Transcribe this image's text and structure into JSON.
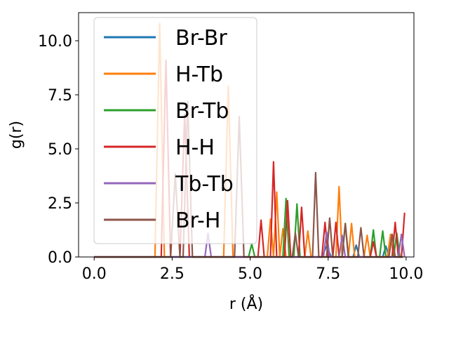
{
  "chart_data": {
    "type": "line",
    "xlabel": "r (Å)",
    "ylabel": "g(r)",
    "xlim": [
      -0.5,
      10.25
    ],
    "ylim": [
      0.0,
      11.3
    ],
    "xticks": [
      0.0,
      2.5,
      5.0,
      7.5,
      10.0
    ],
    "xtick_labels": [
      "0.0",
      "2.5",
      "5.0",
      "7.5",
      "10.0"
    ],
    "yticks": [
      0.0,
      2.5,
      5.0,
      7.5,
      10.0
    ],
    "ytick_labels": [
      "0.0",
      "2.5",
      "5.0",
      "7.5",
      "10.0"
    ],
    "grid": false,
    "legend_position": "upper left",
    "series": [
      {
        "name": "Br-Br",
        "color": "#1f77b4",
        "points": [
          [
            0.0,
            0
          ],
          [
            7.3,
            0
          ],
          [
            7.45,
            0.5
          ],
          [
            7.6,
            0
          ],
          [
            8.3,
            0
          ],
          [
            8.4,
            0.55
          ],
          [
            8.5,
            0
          ],
          [
            9.25,
            0
          ],
          [
            9.35,
            0.5
          ],
          [
            9.45,
            0
          ],
          [
            9.9,
            0
          ]
        ]
      },
      {
        "name": "H-Tb",
        "color": "#ff7f0e",
        "points": [
          [
            0.0,
            0
          ],
          [
            1.95,
            0
          ],
          [
            2.1,
            10.8
          ],
          [
            2.25,
            0
          ],
          [
            4.15,
            0
          ],
          [
            4.3,
            7.9
          ],
          [
            4.45,
            0
          ],
          [
            5.55,
            0
          ],
          [
            5.65,
            1.75
          ],
          [
            5.75,
            0
          ],
          [
            5.85,
            3.0
          ],
          [
            5.95,
            0
          ],
          [
            6.05,
            1.3
          ],
          [
            6.15,
            0
          ],
          [
            6.75,
            0
          ],
          [
            6.85,
            1.2
          ],
          [
            6.95,
            0
          ],
          [
            7.75,
            0
          ],
          [
            7.85,
            3.25
          ],
          [
            7.95,
            0
          ],
          [
            8.15,
            0
          ],
          [
            8.25,
            1.55
          ],
          [
            8.35,
            0
          ],
          [
            8.65,
            0
          ],
          [
            8.75,
            1.0
          ],
          [
            8.85,
            0
          ],
          [
            9.4,
            0
          ],
          [
            9.5,
            1.05
          ],
          [
            9.6,
            0
          ],
          [
            9.9,
            0
          ]
        ]
      },
      {
        "name": "Br-Tb",
        "color": "#2ca02c",
        "points": [
          [
            0.0,
            0
          ],
          [
            4.95,
            0
          ],
          [
            5.05,
            0.6
          ],
          [
            5.15,
            0
          ],
          [
            6.05,
            0
          ],
          [
            6.15,
            2.7
          ],
          [
            6.25,
            0
          ],
          [
            6.4,
            0
          ],
          [
            6.5,
            2.45
          ],
          [
            6.6,
            0
          ],
          [
            7.95,
            0
          ],
          [
            8.05,
            1.55
          ],
          [
            8.15,
            0
          ],
          [
            8.85,
            0
          ],
          [
            8.95,
            1.25
          ],
          [
            9.05,
            0
          ],
          [
            9.15,
            0
          ],
          [
            9.25,
            1.2
          ],
          [
            9.35,
            0
          ],
          [
            9.6,
            0
          ],
          [
            9.7,
            1.1
          ],
          [
            9.8,
            0
          ],
          [
            9.9,
            0
          ]
        ]
      },
      {
        "name": "H-H",
        "color": "#d62728",
        "points": [
          [
            0.0,
            0
          ],
          [
            2.15,
            0
          ],
          [
            2.3,
            9.1
          ],
          [
            2.45,
            0
          ],
          [
            2.75,
            0
          ],
          [
            2.9,
            6.6
          ],
          [
            3.05,
            0
          ],
          [
            5.25,
            0
          ],
          [
            5.35,
            1.7
          ],
          [
            5.45,
            0
          ],
          [
            5.65,
            0
          ],
          [
            5.75,
            4.4
          ],
          [
            5.85,
            0
          ],
          [
            6.1,
            0
          ],
          [
            6.2,
            2.6
          ],
          [
            6.3,
            0
          ],
          [
            6.55,
            0
          ],
          [
            6.65,
            2.3
          ],
          [
            6.75,
            0
          ],
          [
            7.3,
            0
          ],
          [
            7.4,
            1.6
          ],
          [
            7.5,
            0
          ],
          [
            7.65,
            0
          ],
          [
            7.75,
            1.6
          ],
          [
            7.85,
            0
          ],
          [
            8.85,
            0
          ],
          [
            8.95,
            0.7
          ],
          [
            9.05,
            0
          ],
          [
            9.55,
            0
          ],
          [
            9.65,
            1.6
          ],
          [
            9.75,
            0
          ],
          [
            9.85,
            0
          ],
          [
            9.95,
            2.05
          ]
        ]
      },
      {
        "name": "Tb-Tb",
        "color": "#9467bd",
        "points": [
          [
            0.0,
            0
          ],
          [
            3.55,
            0
          ],
          [
            3.65,
            1.1
          ],
          [
            3.75,
            0
          ],
          [
            7.35,
            0
          ],
          [
            7.45,
            1.15
          ],
          [
            7.55,
            0
          ],
          [
            7.85,
            0
          ],
          [
            7.95,
            1.0
          ],
          [
            8.05,
            0
          ],
          [
            9.75,
            0
          ],
          [
            9.85,
            1.05
          ],
          [
            9.95,
            0
          ]
        ]
      },
      {
        "name": "Br-H",
        "color": "#8c564b",
        "points": [
          [
            0.0,
            0
          ],
          [
            2.45,
            0
          ],
          [
            2.6,
            3.85
          ],
          [
            2.75,
            0
          ],
          [
            2.85,
            0
          ],
          [
            3.0,
            7.2
          ],
          [
            3.15,
            0
          ],
          [
            4.5,
            0
          ],
          [
            4.65,
            6.5
          ],
          [
            4.8,
            0
          ],
          [
            6.35,
            0
          ],
          [
            6.45,
            1.1
          ],
          [
            6.55,
            0
          ],
          [
            7.0,
            0
          ],
          [
            7.1,
            3.9
          ],
          [
            7.2,
            0
          ],
          [
            7.45,
            0
          ],
          [
            7.55,
            1.8
          ],
          [
            7.65,
            0
          ],
          [
            7.95,
            0
          ],
          [
            8.05,
            1.55
          ],
          [
            8.15,
            0
          ],
          [
            8.45,
            0
          ],
          [
            8.55,
            1.35
          ],
          [
            8.65,
            0
          ],
          [
            9.45,
            0
          ],
          [
            9.55,
            1.05
          ],
          [
            9.65,
            0
          ],
          [
            9.9,
            0
          ]
        ]
      }
    ]
  }
}
